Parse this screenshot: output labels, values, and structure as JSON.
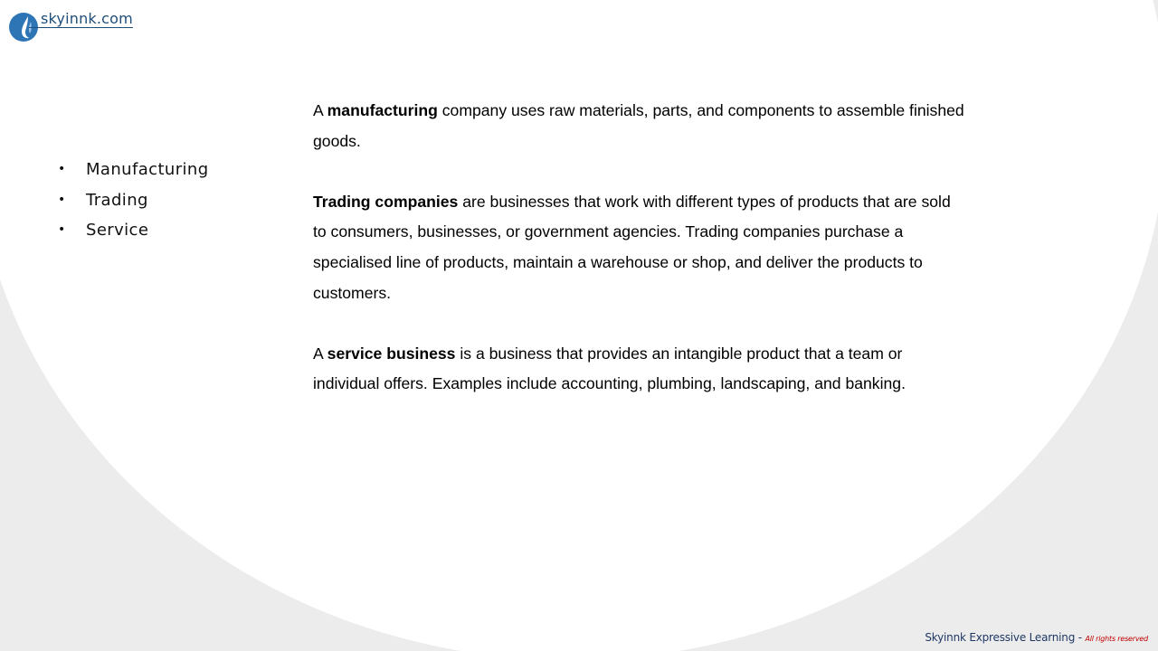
{
  "logo": {
    "text": "skyinnk.com"
  },
  "sidebar": {
    "bullets": [
      {
        "marker": "•",
        "label": "Manufacturing"
      },
      {
        "marker": "•",
        "label": "Trading"
      },
      {
        "marker": "•",
        "label": "Service"
      }
    ]
  },
  "content": {
    "manufacturing": {
      "lead": "A ",
      "term": "manufacturing",
      "rest": " company uses raw materials, parts, and components to assemble finished goods."
    },
    "trading": {
      "term": "Trading companies",
      "rest": " are businesses that work with different types of products that are sold to consumers, businesses, or government agencies. Trading companies purchase a specialised line of products, maintain a warehouse or shop, and deliver the products to customers."
    },
    "service": {
      "lead": "A ",
      "term": "service business",
      "rest": " is a business that provides an intangible product that a team or individual offers. Examples include accounting, plumbing, landscaping, and banking."
    }
  },
  "footer": {
    "main": "Skyinnk Expressive Learning - ",
    "rights": "All rights reserved"
  },
  "colors": {
    "brand_blue": "#1f4e79",
    "logo_drop": "#2e75b6",
    "footer_red": "#c00000",
    "background_gray": "#ececec"
  }
}
